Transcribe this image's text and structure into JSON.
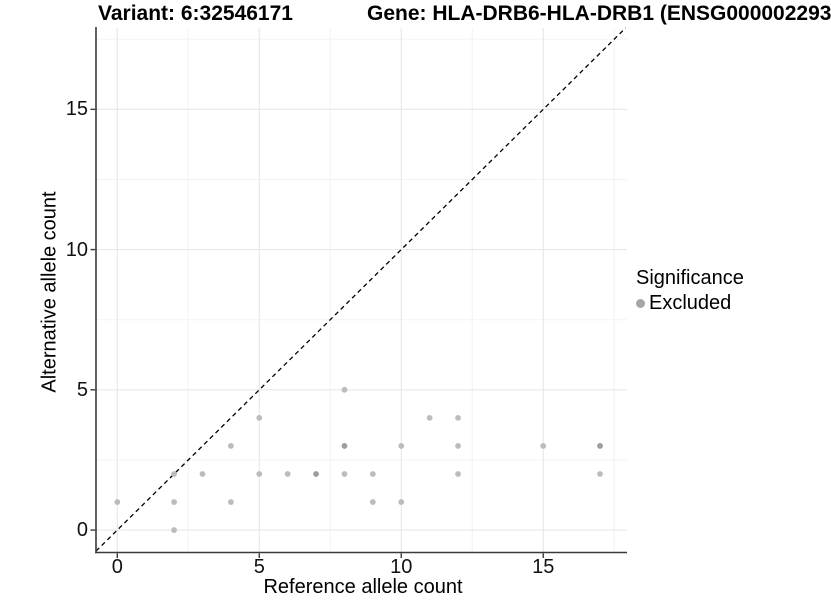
{
  "chart_data": {
    "type": "scatter",
    "title_left": "Variant: 6:32546171",
    "title_right": "Gene: HLA-DRB6-HLA-DRB1 (ENSG000002293",
    "xlabel": "Reference allele count",
    "ylabel": "Alternative allele count",
    "x_ticks": [
      0,
      5,
      10,
      15
    ],
    "y_ticks": [
      0,
      5,
      10,
      15
    ],
    "minor_ticks": [
      2.5,
      7.5,
      12.5,
      17.5
    ],
    "xlim": [
      -0.75,
      17.95
    ],
    "ylim": [
      -0.8,
      17.9
    ],
    "grid": "major+minor",
    "identity_line": {
      "style": "dashed",
      "equation": "y = x",
      "color": "#000000"
    },
    "legend": {
      "position": "right",
      "title": "Significance",
      "items": [
        {
          "label": "Excluded",
          "color": "#a6a6a6"
        }
      ]
    },
    "points": [
      {
        "x": 0,
        "y": 1
      },
      {
        "x": 2,
        "y": 0
      },
      {
        "x": 2,
        "y": 1
      },
      {
        "x": 2,
        "y": 2
      },
      {
        "x": 3,
        "y": 2
      },
      {
        "x": 4,
        "y": 1
      },
      {
        "x": 4,
        "y": 3
      },
      {
        "x": 5,
        "y": 2
      },
      {
        "x": 5,
        "y": 4
      },
      {
        "x": 6,
        "y": 2
      },
      {
        "x": 7,
        "y": 2,
        "overlap": true
      },
      {
        "x": 8,
        "y": 2
      },
      {
        "x": 8,
        "y": 3,
        "overlap": true
      },
      {
        "x": 8,
        "y": 5
      },
      {
        "x": 9,
        "y": 1
      },
      {
        "x": 9,
        "y": 2
      },
      {
        "x": 10,
        "y": 1
      },
      {
        "x": 10,
        "y": 3
      },
      {
        "x": 11,
        "y": 4
      },
      {
        "x": 12,
        "y": 2
      },
      {
        "x": 12,
        "y": 3
      },
      {
        "x": 12,
        "y": 4
      },
      {
        "x": 15,
        "y": 3
      },
      {
        "x": 17,
        "y": 2
      },
      {
        "x": 17,
        "y": 3,
        "overlap": true
      }
    ],
    "colors": {
      "point": "#bcbcbc",
      "point_overlap": "#9d9d9d",
      "grid_major": "#e8e8e8",
      "grid_minor": "#f3f3f3",
      "axis": "#3a3a3a",
      "background": "#ffffff"
    }
  }
}
